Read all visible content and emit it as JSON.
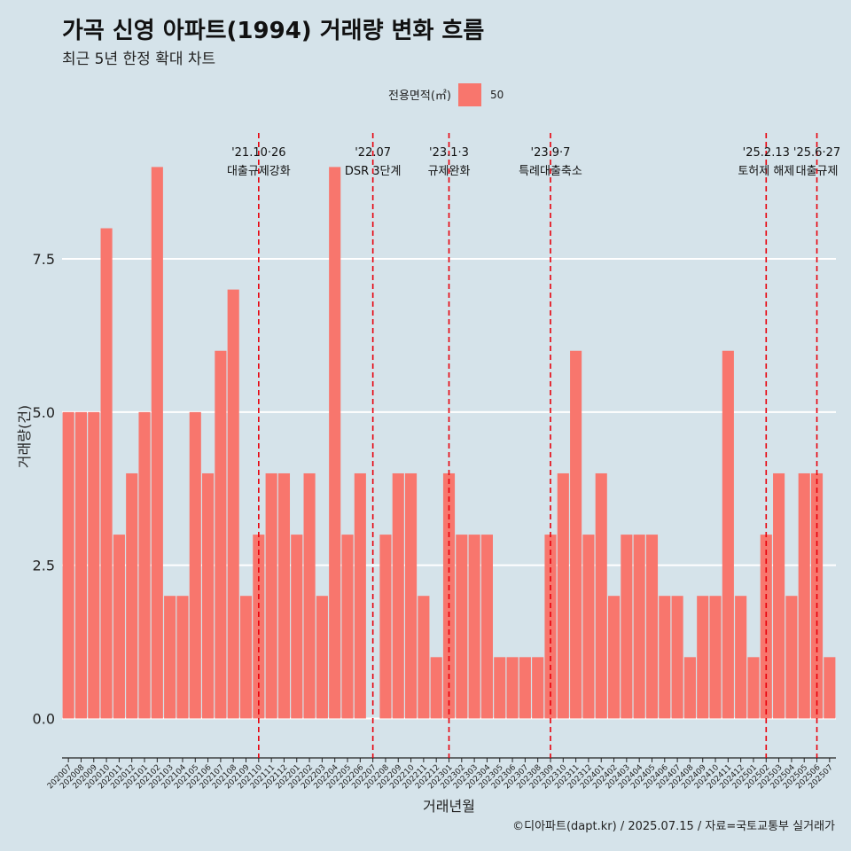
{
  "title": "가곡 신영 아파트(1994) 거래량 변화 흐름",
  "subtitle": "최근 5년 한정 확대 차트",
  "legend": {
    "title": "전용면적(㎡)",
    "entries": [
      "50"
    ]
  },
  "caption": "©디아파트(dapt.kr) / 2025.07.15 / 자료=국토교통부 실거래가",
  "colors": {
    "bar": "#f8766d",
    "background": "#d5e3ea",
    "grid": "#ffffff",
    "event_line": "#e8000b"
  },
  "chart_data": {
    "type": "bar",
    "title": "가곡 신영 아파트(1994) 거래량 변화 흐름",
    "xlabel": "거래년월",
    "ylabel": "거래량(건)",
    "ylim": [
      -0.5,
      9.7
    ],
    "yticks": [
      0,
      2.5,
      5,
      7.5
    ],
    "ytick_labels": [
      "0.0",
      "2.5",
      "5.0",
      "7.5"
    ],
    "grid": true,
    "categories": [
      "202007",
      "202008",
      "202009",
      "202010",
      "202011",
      "202012",
      "202101",
      "202102",
      "202103",
      "202104",
      "202105",
      "202106",
      "202107",
      "202108",
      "202109",
      "202110",
      "202111",
      "202112",
      "202201",
      "202202",
      "202203",
      "202204",
      "202205",
      "202206",
      "202207",
      "202208",
      "202209",
      "202210",
      "202211",
      "202212",
      "202301",
      "202302",
      "202303",
      "202304",
      "202305",
      "202306",
      "202307",
      "202308",
      "202309",
      "202310",
      "202311",
      "202312",
      "202401",
      "202402",
      "202403",
      "202404",
      "202405",
      "202406",
      "202407",
      "202408",
      "202409",
      "202410",
      "202411",
      "202412",
      "202501",
      "202502",
      "202503",
      "202504",
      "202505",
      "202506",
      "202507"
    ],
    "series": [
      {
        "name": "50",
        "values": [
          5,
          5,
          5,
          8,
          3,
          4,
          5,
          9,
          2,
          2,
          5,
          4,
          6,
          7,
          2,
          3,
          4,
          4,
          3,
          4,
          2,
          9,
          3,
          4,
          0,
          3,
          4,
          4,
          2,
          1,
          4,
          3,
          3,
          3,
          1,
          1,
          1,
          1,
          3,
          4,
          6,
          3,
          4,
          2,
          3,
          3,
          3,
          2,
          2,
          1,
          2,
          2,
          6,
          2,
          1,
          3,
          4,
          2,
          4,
          4,
          1
        ]
      }
    ],
    "events": [
      {
        "pos": 15.5,
        "date": "'21.10·26",
        "label": "대출규제강화"
      },
      {
        "pos": 24.5,
        "date": "'22.07",
        "label": "DSR 3단계"
      },
      {
        "pos": 30.5,
        "date": "'23.1·3",
        "label": "규제완화"
      },
      {
        "pos": 38.5,
        "date": "'23.9·7",
        "label": "특례대출축소"
      },
      {
        "pos": 55.5,
        "date": "'25.2.13",
        "label": "토허제 해제"
      },
      {
        "pos": 59.5,
        "date": "'25.6·27",
        "label": "대출규제"
      }
    ]
  }
}
